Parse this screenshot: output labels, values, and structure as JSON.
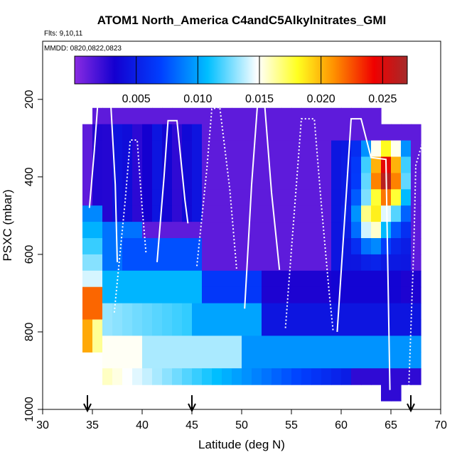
{
  "header": {
    "title": "ATOM1 North_America C4andC5Alkylnitrates_GMI",
    "flights": "Flts: 9,10,11",
    "dates": "MMDD: 0820,0822,0823"
  },
  "chart_data": {
    "type": "heatmap",
    "xlabel": "Latitude (deg N)",
    "ylabel": "PSXC (mbar)",
    "xlim": [
      30,
      70
    ],
    "ylim": [
      1000,
      50
    ],
    "y_reversed": true,
    "x_ticks": [
      30,
      35,
      40,
      45,
      50,
      55,
      60,
      65,
      70
    ],
    "y_ticks": [
      200,
      400,
      600,
      800,
      1000
    ],
    "colorbar": {
      "range": [
        0.0,
        0.027
      ],
      "ticks": [
        0.005,
        0.01,
        0.015,
        0.02,
        0.025
      ],
      "tick_labels": [
        "0.005",
        "0.010",
        "0.015",
        "0.020",
        "0.025"
      ],
      "colors": [
        "#8a2be2",
        "#0000ff",
        "#00bfff",
        "#ffffff",
        "#ffff00",
        "#ff0000",
        "#a52a2a"
      ]
    },
    "arrows_latitude": [
      34.5,
      45,
      67
    ],
    "grid": false,
    "legend": "colorbar-top"
  }
}
